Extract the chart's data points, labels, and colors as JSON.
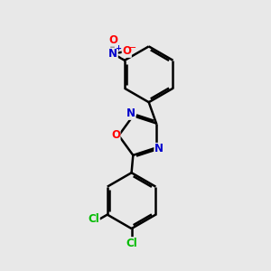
{
  "background_color": "#e8e8e8",
  "atom_color_N": "#0000cc",
  "atom_color_O": "#ff0000",
  "atom_color_Cl": "#00bb00",
  "bond_color": "#000000",
  "bond_width": 1.8,
  "figsize": [
    3.0,
    3.0
  ],
  "dpi": 100,
  "xlim": [
    0,
    10
  ],
  "ylim": [
    0,
    10
  ]
}
